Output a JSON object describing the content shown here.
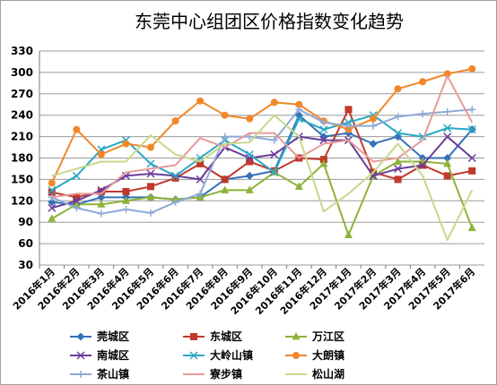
{
  "chart_data": {
    "type": "line",
    "title": "东莞中心组团区价格指数变化趋势",
    "xlabel": "",
    "ylabel": "",
    "ylim": [
      30,
      330
    ],
    "yticks": [
      30,
      60,
      90,
      120,
      150,
      180,
      210,
      240,
      270,
      300,
      330
    ],
    "grid": true,
    "legend_position": "bottom",
    "categories": [
      "2016年1月",
      "2016年2月",
      "2016年3月",
      "2016年4月",
      "2016年5月",
      "2016年6月",
      "2016年7月",
      "2016年8月",
      "2016年9月",
      "2016年10月",
      "2016年11月",
      "2016年12月",
      "2017年1月",
      "2017年2月",
      "2017年3月",
      "2017年4月",
      "2017年5月",
      "2017年6月"
    ],
    "series": [
      {
        "name": "莞城区",
        "color": "#3670b8",
        "marker": "diamond",
        "values": [
          118,
          115,
          125,
          125,
          125,
          122,
          125,
          150,
          155,
          162,
          240,
          210,
          215,
          200,
          210,
          180,
          180,
          220
        ]
      },
      {
        "name": "东城区",
        "color": "#c0392b",
        "marker": "square",
        "values": [
          132,
          125,
          133,
          133,
          140,
          152,
          172,
          150,
          175,
          162,
          180,
          178,
          248,
          160,
          150,
          170,
          155,
          162
        ]
      },
      {
        "name": "万江区",
        "color": "#8db33a",
        "marker": "triangle",
        "values": [
          95,
          115,
          115,
          120,
          125,
          122,
          125,
          135,
          135,
          160,
          140,
          172,
          72,
          155,
          175,
          175,
          172,
          82
        ]
      },
      {
        "name": "南城区",
        "color": "#6a3d9a",
        "marker": "x",
        "values": [
          110,
          120,
          135,
          155,
          158,
          155,
          150,
          195,
          180,
          185,
          210,
          205,
          205,
          155,
          165,
          170,
          210,
          180
        ]
      },
      {
        "name": "大岭山镇",
        "color": "#2aa7c4",
        "marker": "x",
        "values": [
          135,
          155,
          192,
          205,
          172,
          155,
          180,
          205,
          185,
          160,
          235,
          220,
          230,
          240,
          215,
          210,
          222,
          220
        ]
      },
      {
        "name": "大朗镇",
        "color": "#f0882a",
        "marker": "circle",
        "values": [
          145,
          220,
          185,
          200,
          195,
          232,
          260,
          240,
          235,
          258,
          255,
          232,
          220,
          235,
          277,
          287,
          298,
          305
        ]
      },
      {
        "name": "茶山镇",
        "color": "#8ea9d6",
        "marker": "plus",
        "values": [
          125,
          110,
          102,
          108,
          103,
          118,
          130,
          210,
          210,
          205,
          248,
          230,
          225,
          225,
          238,
          242,
          245,
          248
        ]
      },
      {
        "name": "寮步镇",
        "color": "#e89a9a",
        "marker": "none",
        "values": [
          125,
          130,
          130,
          160,
          165,
          170,
          208,
          195,
          215,
          215,
          180,
          200,
          205,
          175,
          180,
          205,
          295,
          230
        ]
      },
      {
        "name": "松山湖",
        "color": "#c6d98a",
        "marker": "none",
        "values": [
          155,
          165,
          175,
          175,
          212,
          185,
          175,
          200,
          202,
          240,
          210,
          105,
          130,
          160,
          200,
          155,
          65,
          135
        ]
      }
    ]
  }
}
